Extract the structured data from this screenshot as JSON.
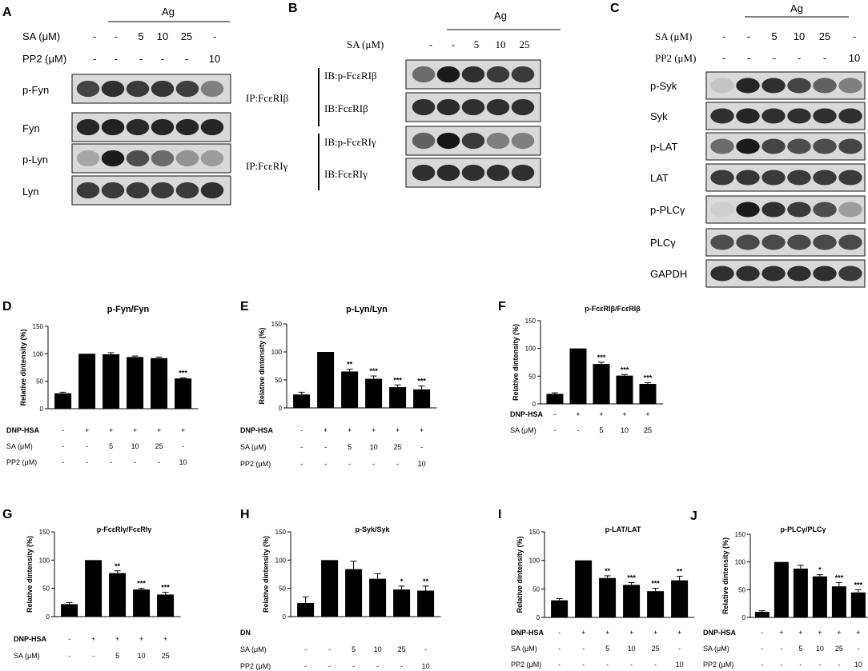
{
  "panels": {
    "A": {
      "letter": "A",
      "treatment": "Ag",
      "row_labels": [
        "SA (μM)",
        "PP2 (μM)"
      ],
      "rows": [
        [
          "-",
          "-",
          "5",
          "10",
          "25",
          "-"
        ],
        [
          "-",
          "-",
          "-",
          "-",
          "-",
          "10"
        ]
      ],
      "blots": [
        "p-Fyn",
        "Fyn",
        "p-Lyn",
        "Lyn"
      ]
    },
    "B": {
      "letter": "B",
      "treatment": "Ag",
      "row_labels": [
        "SA (μM)"
      ],
      "rows": [
        [
          "-",
          "-",
          "5",
          "10",
          "25"
        ]
      ],
      "ip_labels": [
        "IP:FcεRIβ",
        "IP:FcεRIγ"
      ],
      "blots": [
        "IB:p-FcεRIβ",
        "IB:FcεRIβ",
        "IB:p-FcεRIγ",
        "IB:FcεRIγ"
      ]
    },
    "C": {
      "letter": "C",
      "treatment": "Ag",
      "row_labels": [
        "SA (μM)",
        "PP2 (μM)"
      ],
      "rows": [
        [
          "-",
          "-",
          "5",
          "10",
          "25",
          "-"
        ],
        [
          "-",
          "-",
          "-",
          "-",
          "-",
          "10"
        ]
      ],
      "blots": [
        "p-Syk",
        "Syk",
        "p-LAT",
        "LAT",
        "p-PLCγ",
        "PLCγ",
        "GAPDH"
      ]
    }
  },
  "chart_data": [
    {
      "panel": "D",
      "type": "bar",
      "title": "p-Fyn/Fyn",
      "ylabel": "Relative dintensity (%)",
      "ylim": [
        0,
        150
      ],
      "yticks": [
        "0",
        "50",
        "100",
        "150"
      ],
      "values": [
        28,
        100,
        99,
        94,
        92,
        55
      ],
      "errors": [
        2,
        0,
        3,
        2,
        2,
        1
      ],
      "sig": [
        "",
        "",
        "",
        "",
        "",
        "***"
      ],
      "table_labels": [
        "DNP-HSA",
        "SA (μM)",
        "PP2 (μM)"
      ],
      "table": [
        [
          "-",
          "+",
          "+",
          "+",
          "+",
          "+"
        ],
        [
          "-",
          "-",
          "5",
          "10",
          "25",
          "-"
        ],
        [
          "-",
          "-",
          "-",
          "-",
          "-",
          "10"
        ]
      ]
    },
    {
      "panel": "E",
      "type": "bar",
      "title": "p-Lyn/Lyn",
      "ylabel": "Relative dintensity (%)",
      "ylim": [
        0,
        150
      ],
      "yticks": [
        "0",
        "50",
        "100",
        "150"
      ],
      "values": [
        24,
        100,
        65,
        52,
        37,
        33
      ],
      "errors": [
        4,
        0,
        4,
        5,
        4,
        6
      ],
      "sig": [
        "",
        "",
        "**",
        "***",
        "***",
        "***"
      ],
      "table_labels": [
        "DNP-HSA",
        "SA (μM)",
        "PP2 (μM)"
      ],
      "table": [
        [
          "-",
          "+",
          "+",
          "+",
          "+",
          "+"
        ],
        [
          "-",
          "-",
          "5",
          "10",
          "25",
          "-"
        ],
        [
          "-",
          "-",
          "-",
          "-",
          "-",
          "10"
        ]
      ]
    },
    {
      "panel": "F",
      "type": "bar",
      "title": "p-FcεRIβ/FcεRIβ",
      "ylabel": "Relative dintensity (%)",
      "ylim": [
        0,
        150
      ],
      "yticks": [
        "0",
        "50",
        "100",
        "150"
      ],
      "values": [
        18,
        100,
        72,
        51,
        36
      ],
      "errors": [
        2,
        0,
        3,
        2,
        2
      ],
      "sig": [
        "",
        "",
        "***",
        "***",
        "***"
      ],
      "table_labels": [
        "DNP-HSA",
        "SA (μM)"
      ],
      "table": [
        [
          "-",
          "+",
          "+",
          "+",
          "+"
        ],
        [
          "-",
          "-",
          "5",
          "10",
          "25"
        ]
      ]
    },
    {
      "panel": "G",
      "type": "bar",
      "title": "p-FcεRIγ/FcεRIγ",
      "ylabel": "Relative dintensity (%)",
      "ylim": [
        0,
        150
      ],
      "yticks": [
        "0",
        "50",
        "100",
        "150"
      ],
      "values": [
        22,
        100,
        77,
        48,
        39
      ],
      "errors": [
        3,
        0,
        4,
        2,
        4
      ],
      "sig": [
        "",
        "",
        "**",
        "***",
        "***"
      ],
      "table_labels": [
        "DNP-HSA",
        "SA (μM)"
      ],
      "table": [
        [
          "-",
          "+",
          "+",
          "+",
          "+"
        ],
        [
          "-",
          "-",
          "5",
          "10",
          "25"
        ]
      ]
    },
    {
      "panel": "H",
      "type": "bar",
      "title": "p-Syk/Syk",
      "ylabel": "Relative dintensity (%)",
      "ylim": [
        0,
        150
      ],
      "yticks": [
        "0",
        "50",
        "100",
        "150"
      ],
      "values": [
        24,
        100,
        84,
        67,
        48,
        46
      ],
      "errors": [
        11,
        0,
        14,
        9,
        6,
        8
      ],
      "sig": [
        "",
        "",
        "",
        "",
        "*",
        "**"
      ],
      "table_labels": [
        "DN",
        "SA (μM)",
        "PP2 (μM)"
      ],
      "table": [
        [
          "",
          "",
          "",
          "",
          "",
          ""
        ],
        [
          "-",
          "-",
          "5",
          "10",
          "25",
          "-"
        ],
        [
          "-",
          "-",
          "-",
          "-",
          "-",
          "10"
        ]
      ]
    },
    {
      "panel": "I",
      "type": "bar",
      "title": "p-LAT/LAT",
      "ylabel": "Relative dintensity (%)",
      "ylim": [
        0,
        150
      ],
      "yticks": [
        "0",
        "50",
        "100",
        "150"
      ],
      "values": [
        30,
        100,
        69,
        57,
        46,
        65
      ],
      "errors": [
        3,
        0,
        4,
        4,
        5,
        7
      ],
      "sig": [
        "",
        "",
        "**",
        "***",
        "***",
        "**"
      ],
      "table_labels": [
        "DNP-HSA",
        "SA (μM)",
        "PP2 (μM)"
      ],
      "table": [
        [
          "-",
          "+",
          "+",
          "+",
          "+",
          "+"
        ],
        [
          "-",
          "-",
          "5",
          "10",
          "25",
          "-"
        ],
        [
          "-",
          "-",
          "-",
          "-",
          "-",
          "10"
        ]
      ]
    },
    {
      "panel": "J",
      "type": "bar",
      "title": "p-PLCγ/PLCγ",
      "ylabel": "Relative dintensity (%)",
      "ylim": [
        0,
        150
      ],
      "yticks": [
        "0",
        "50",
        "100",
        "150"
      ],
      "values": [
        10,
        100,
        88,
        74,
        56,
        45
      ],
      "errors": [
        2,
        0,
        6,
        3,
        7,
        5
      ],
      "sig": [
        "",
        "",
        "",
        "*",
        "***",
        "***"
      ],
      "table_labels": [
        "DNP-HSA",
        "SA (μM)",
        "PP2 (μM)"
      ],
      "table": [
        [
          "-",
          "+",
          "+",
          "+",
          "+",
          "+"
        ],
        [
          "-",
          "-",
          "5",
          "10",
          "25",
          "-"
        ],
        [
          "-",
          "-",
          "-",
          "-",
          "-",
          "10"
        ]
      ]
    }
  ]
}
